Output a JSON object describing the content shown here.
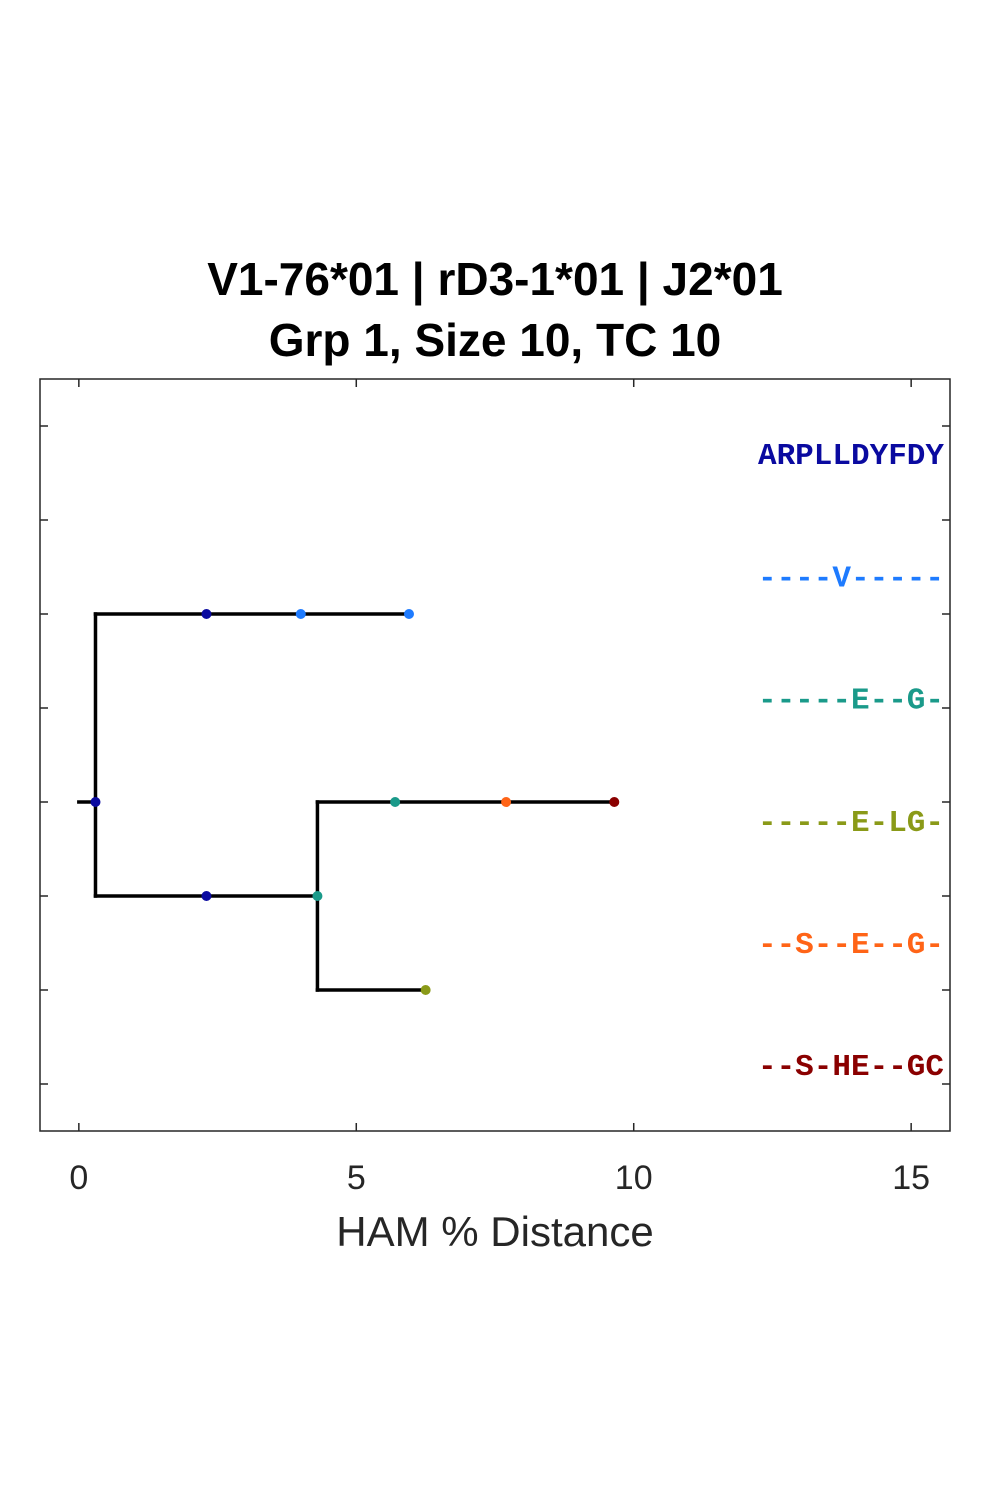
{
  "chart_data": {
    "type": "tree",
    "title": "V1-76*01 | rD3-1*01 | J2*01",
    "subtitle": "Grp 1, Size 10, TC 10",
    "xlabel": "HAM % Distance",
    "xlim": [
      -0.7,
      15.7
    ],
    "ylim": [
      0.5,
      8.5
    ],
    "xticks": [
      0,
      5,
      10,
      15
    ],
    "xtick_labels": [
      "0",
      "5",
      "10",
      "15"
    ],
    "yticks": [
      1,
      2,
      3,
      4,
      5,
      6,
      7,
      8
    ],
    "edges": [
      {
        "x1": 0.0,
        "x2": 0.3,
        "y": 4
      },
      {
        "x1": 0.3,
        "x2": 0.3,
        "y1": 6,
        "y2": 3
      },
      {
        "x1": 0.3,
        "x2": 5.95,
        "y": 6
      },
      {
        "x1": 0.3,
        "x2": 4.3,
        "y": 3
      },
      {
        "x1": 4.3,
        "x2": 4.3,
        "y1": 4,
        "y2": 2
      },
      {
        "x1": 4.3,
        "x2": 9.65,
        "y": 4
      },
      {
        "x1": 4.3,
        "x2": 6.25,
        "y": 2
      }
    ],
    "nodes": [
      {
        "x": 0.3,
        "y": 4,
        "color": "#0a0aa0"
      },
      {
        "x": 2.3,
        "y": 6,
        "color": "#0a0aa0"
      },
      {
        "x": 4.0,
        "y": 6,
        "color": "#1e7bff"
      },
      {
        "x": 5.95,
        "y": 6,
        "color": "#1e7bff"
      },
      {
        "x": 2.3,
        "y": 3,
        "color": "#0a0aa0"
      },
      {
        "x": 4.3,
        "y": 3,
        "color": "#1a9a8a"
      },
      {
        "x": 5.7,
        "y": 4,
        "color": "#1a9a8a"
      },
      {
        "x": 7.7,
        "y": 4,
        "color": "#ff6417"
      },
      {
        "x": 9.65,
        "y": 4,
        "color": "#8a0000"
      },
      {
        "x": 6.25,
        "y": 2,
        "color": "#8a9a18"
      }
    ],
    "sequences": [
      {
        "text": "ARPLLDYFDY",
        "color": "#0a0aa0",
        "y": 7.7
      },
      {
        "text": "----V-----",
        "color": "#1e7bff",
        "y": 6.4
      },
      {
        "text": "-----E--G-",
        "color": "#1a9a8a",
        "y": 5.1
      },
      {
        "text": "-----E-LG-",
        "color": "#8a9a18",
        "y": 3.8
      },
      {
        "text": "--S--E--G-",
        "color": "#ff6417",
        "y": 2.5
      },
      {
        "text": "--S-HE--GC",
        "color": "#8a0000",
        "y": 1.2
      }
    ]
  }
}
